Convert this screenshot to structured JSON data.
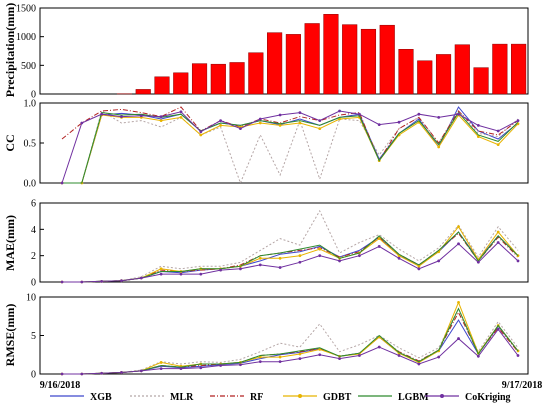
{
  "chart_data": [
    {
      "type": "bar",
      "title": "",
      "xlabel": "",
      "ylabel": "Precipitation(mm)",
      "ylim": [
        0,
        1500
      ],
      "yticks": [
        "0",
        "500",
        "1000",
        "1500"
      ],
      "color": "#ff0000",
      "values": [
        0,
        0,
        0,
        0,
        5,
        80,
        300,
        370,
        530,
        520,
        550,
        720,
        1070,
        1040,
        1230,
        1390,
        1210,
        1130,
        1200,
        780,
        580,
        690,
        860,
        460,
        870,
        870
      ]
    },
    {
      "type": "line",
      "title": "",
      "xlabel": "",
      "ylabel": "CC",
      "ylim": [
        0,
        1
      ],
      "yticks": [
        "0.0",
        "0.5",
        "1.0"
      ],
      "series": [
        {
          "name": "XGB",
          "values": [
            0,
            0,
            0.85,
            0.87,
            0.85,
            0.8,
            0.86,
            0.65,
            0.75,
            0.72,
            0.78,
            0.73,
            0.8,
            0.72,
            0.82,
            0.86,
            0.3,
            0.62,
            0.8,
            0.45,
            0.95,
            0.65,
            0.55,
            0.75
          ]
        },
        {
          "name": "MLR",
          "values": [
            0,
            0,
            0.9,
            0.75,
            0.78,
            0.7,
            0.82,
            0.6,
            0.7,
            0.0,
            0.6,
            0.1,
            0.78,
            0.05,
            0.8,
            0.78,
            0.35,
            0.68,
            0.82,
            0.5,
            0.9,
            0.62,
            0.58,
            0.8
          ]
        },
        {
          "name": "RF",
          "values": [
            0.55,
            0.75,
            0.9,
            0.92,
            0.88,
            0.83,
            0.95,
            0.65,
            0.78,
            0.7,
            0.8,
            0.75,
            0.83,
            0.78,
            0.85,
            0.88,
            0.28,
            0.68,
            0.82,
            0.5,
            0.9,
            0.65,
            0.6,
            0.78
          ]
        },
        {
          "name": "GDBT",
          "values": [
            0,
            0,
            0.85,
            0.82,
            0.82,
            0.78,
            0.82,
            0.6,
            0.72,
            0.7,
            0.75,
            0.72,
            0.75,
            0.68,
            0.8,
            0.82,
            0.28,
            0.6,
            0.76,
            0.45,
            0.85,
            0.58,
            0.48,
            0.74
          ]
        },
        {
          "name": "LGBM",
          "values": [
            0,
            0,
            0.88,
            0.85,
            0.86,
            0.82,
            0.86,
            0.65,
            0.75,
            0.72,
            0.78,
            0.74,
            0.78,
            0.72,
            0.82,
            0.84,
            0.28,
            0.62,
            0.78,
            0.48,
            0.88,
            0.6,
            0.52,
            0.76
          ]
        },
        {
          "name": "CoKriging",
          "values": [
            0,
            0.75,
            0.86,
            0.83,
            0.84,
            0.83,
            0.89,
            0.64,
            0.78,
            0.68,
            0.8,
            0.85,
            0.88,
            0.78,
            0.9,
            0.86,
            0.73,
            0.76,
            0.86,
            0.82,
            0.86,
            0.72,
            0.65,
            0.78
          ]
        }
      ]
    },
    {
      "type": "line",
      "title": "",
      "xlabel": "",
      "ylabel": "MAE(mm)",
      "ylim": [
        0,
        6
      ],
      "yticks": [
        "0",
        "2",
        "4",
        "6"
      ],
      "series": [
        {
          "name": "XGB",
          "values": [
            0,
            0,
            0.05,
            0.1,
            0.3,
            0.8,
            0.7,
            0.9,
            1.0,
            1.2,
            1.6,
            2.1,
            2.3,
            2.7,
            1.9,
            2.4,
            3.4,
            2.0,
            1.3,
            2.3,
            3.8,
            1.7,
            3.5,
            2.0
          ]
        },
        {
          "name": "MLR",
          "values": [
            0,
            0,
            0.05,
            0.1,
            0.4,
            1.2,
            1.0,
            1.2,
            1.2,
            1.5,
            2.4,
            3.3,
            2.8,
            5.4,
            2.2,
            3.0,
            3.6,
            2.5,
            1.6,
            2.6,
            4.3,
            1.9,
            4.2,
            2.4
          ]
        },
        {
          "name": "RF",
          "values": [
            0,
            0,
            0.05,
            0.1,
            0.3,
            0.9,
            0.8,
            0.9,
            1.0,
            1.3,
            2.0,
            2.2,
            2.4,
            2.6,
            1.9,
            2.3,
            3.4,
            2.1,
            1.3,
            2.4,
            3.7,
            1.6,
            3.4,
            1.9
          ]
        },
        {
          "name": "GDBT",
          "values": [
            0,
            0,
            0.05,
            0.1,
            0.3,
            1.0,
            0.8,
            1.0,
            1.0,
            1.2,
            1.8,
            1.8,
            2.0,
            2.5,
            1.8,
            2.2,
            3.3,
            2.0,
            1.2,
            2.3,
            4.2,
            1.7,
            3.8,
            2.0
          ]
        },
        {
          "name": "LGBM",
          "values": [
            0,
            0,
            0.05,
            0.1,
            0.3,
            0.8,
            0.8,
            1.0,
            1.0,
            1.2,
            2.0,
            2.2,
            2.5,
            2.8,
            1.8,
            2.2,
            3.5,
            2.1,
            1.3,
            2.4,
            3.8,
            1.6,
            3.5,
            2.0
          ]
        },
        {
          "name": "CoKriging",
          "values": [
            0,
            0,
            0.05,
            0.1,
            0.3,
            0.6,
            0.6,
            0.6,
            0.9,
            1.0,
            1.3,
            1.1,
            1.5,
            2.0,
            1.6,
            2.0,
            2.7,
            1.8,
            1.0,
            1.6,
            2.9,
            1.5,
            3.0,
            1.6
          ]
        }
      ]
    },
    {
      "type": "line",
      "title": "",
      "xlabel": "",
      "ylabel": "RMSE(mm)",
      "ylim": [
        0,
        10
      ],
      "yticks": [
        "0",
        "5",
        "10"
      ],
      "series": [
        {
          "name": "XGB",
          "values": [
            0,
            0,
            0.1,
            0.2,
            0.4,
            1.0,
            0.8,
            1.0,
            1.2,
            1.4,
            2.0,
            2.5,
            2.8,
            3.3,
            2.3,
            2.7,
            4.8,
            2.7,
            1.6,
            3.0,
            7.0,
            2.6,
            6.2,
            3.0
          ]
        },
        {
          "name": "MLR",
          "values": [
            0,
            0,
            0.1,
            0.2,
            0.5,
            1.6,
            1.3,
            1.6,
            1.5,
            1.9,
            2.9,
            4.0,
            3.5,
            6.5,
            2.9,
            3.8,
            5.0,
            3.4,
            2.1,
            3.4,
            8.5,
            2.9,
            6.8,
            3.4
          ]
        },
        {
          "name": "RF",
          "values": [
            0,
            0,
            0.1,
            0.2,
            0.4,
            1.1,
            0.9,
            1.1,
            1.3,
            1.5,
            2.4,
            2.6,
            2.9,
            3.3,
            2.3,
            2.7,
            4.8,
            2.9,
            1.7,
            3.1,
            8.0,
            2.7,
            6.0,
            2.9
          ]
        },
        {
          "name": "GDBT",
          "values": [
            0,
            0,
            0.1,
            0.2,
            0.4,
            1.5,
            1.0,
            1.3,
            1.3,
            1.5,
            2.2,
            2.2,
            2.6,
            3.2,
            2.3,
            2.6,
            4.8,
            2.7,
            1.5,
            3.0,
            9.3,
            2.7,
            6.3,
            3.0
          ]
        },
        {
          "name": "LGBM",
          "values": [
            0,
            0,
            0.1,
            0.2,
            0.4,
            1.1,
            0.9,
            1.3,
            1.3,
            1.5,
            2.4,
            2.6,
            3.0,
            3.4,
            2.3,
            2.7,
            5.0,
            2.8,
            1.6,
            3.1,
            8.5,
            2.6,
            6.3,
            3.0
          ]
        },
        {
          "name": "CoKriging",
          "values": [
            0,
            0,
            0.1,
            0.2,
            0.4,
            0.7,
            0.7,
            0.8,
            1.1,
            1.2,
            1.6,
            1.6,
            2.0,
            2.5,
            2.0,
            2.4,
            3.5,
            2.4,
            1.3,
            2.2,
            4.6,
            2.3,
            5.8,
            2.4
          ]
        }
      ]
    }
  ],
  "x_axis": {
    "start_label": "9/16/2018",
    "end_label": "9/17/2018"
  },
  "legend": [
    {
      "name": "XGB",
      "color": "#3f48cc",
      "dash": "",
      "marker": "none"
    },
    {
      "name": "MLR",
      "color": "#b5a6a6",
      "dash": "2,2",
      "marker": "none"
    },
    {
      "name": "RF",
      "color": "#b22222",
      "dash": "5,2,1,2",
      "marker": "none"
    },
    {
      "name": "GDBT",
      "color": "#e8b400",
      "dash": "",
      "marker": "circle"
    },
    {
      "name": "LGBM",
      "color": "#2e8b2e",
      "dash": "",
      "marker": "none"
    },
    {
      "name": "CoKriging",
      "color": "#7030a0",
      "dash": "",
      "marker": "circle"
    }
  ]
}
